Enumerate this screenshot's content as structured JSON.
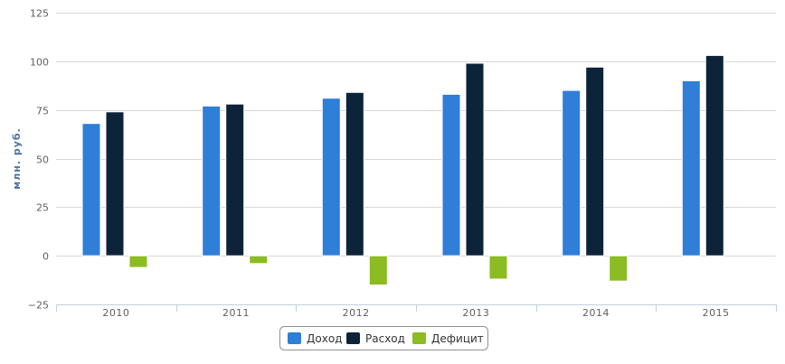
{
  "chart_data": {
    "type": "bar",
    "categories": [
      "2010",
      "2011",
      "2012",
      "2013",
      "2014",
      "2015"
    ],
    "series": [
      {
        "name": "Доход",
        "color": "#2f7ed8",
        "values": [
          68,
          77,
          81,
          83,
          85,
          90
        ]
      },
      {
        "name": "Расход",
        "color": "#0d233a",
        "values": [
          74,
          78,
          84,
          99,
          97,
          103
        ]
      },
      {
        "name": "Дефицит",
        "color": "#8bbc21",
        "values": [
          -6,
          -4,
          -15,
          -12,
          -13,
          null
        ]
      }
    ],
    "ylabel": "млн. руб.",
    "xlabel": "",
    "ylim": [
      -25,
      125
    ],
    "yticks": [
      -25,
      0,
      25,
      50,
      75,
      100,
      125
    ],
    "grid": true,
    "legend_position": "bottom-center"
  }
}
